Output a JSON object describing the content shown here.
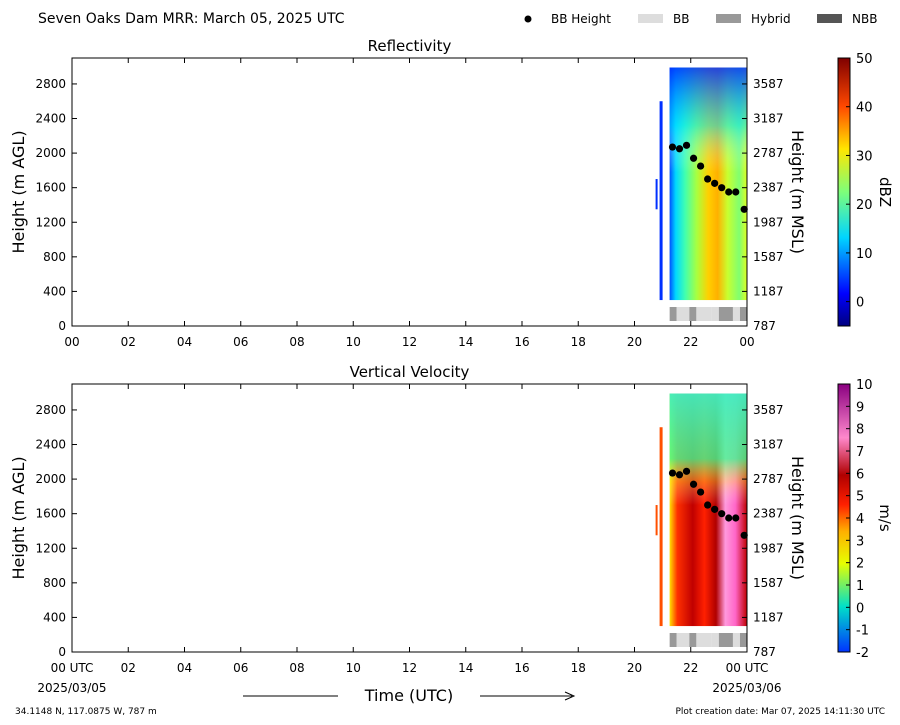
{
  "header": {
    "title": "Seven Oaks Dam MRR:  March 05, 2025 UTC"
  },
  "legend": [
    {
      "kind": "marker",
      "label": "BB Height",
      "color": "#000000"
    },
    {
      "kind": "patch",
      "label": "BB",
      "color": "#dddddd"
    },
    {
      "kind": "patch",
      "label": "Hybrid",
      "color": "#999999"
    },
    {
      "kind": "patch",
      "label": "NBB",
      "color": "#555555"
    }
  ],
  "x_axis": {
    "label": "Time (UTC)",
    "ticks": [
      {
        "hour": 0,
        "label": "00"
      },
      {
        "hour": 2,
        "label": "02"
      },
      {
        "hour": 4,
        "label": "04"
      },
      {
        "hour": 6,
        "label": "06"
      },
      {
        "hour": 8,
        "label": "08"
      },
      {
        "hour": 10,
        "label": "10"
      },
      {
        "hour": 12,
        "label": "12"
      },
      {
        "hour": 14,
        "label": "14"
      },
      {
        "hour": 16,
        "label": "16"
      },
      {
        "hour": 18,
        "label": "18"
      },
      {
        "hour": 20,
        "label": "20"
      },
      {
        "hour": 22,
        "label": "22"
      },
      {
        "hour": 24,
        "label": "00"
      }
    ],
    "bottom_ticks": [
      {
        "hour": 0,
        "label": "00 UTC"
      },
      {
        "hour": 2,
        "label": "02"
      },
      {
        "hour": 4,
        "label": "04"
      },
      {
        "hour": 6,
        "label": "06"
      },
      {
        "hour": 8,
        "label": "08"
      },
      {
        "hour": 10,
        "label": "10"
      },
      {
        "hour": 12,
        "label": "12"
      },
      {
        "hour": 14,
        "label": "14"
      },
      {
        "hour": 16,
        "label": "16"
      },
      {
        "hour": 18,
        "label": "18"
      },
      {
        "hour": 20,
        "label": "20"
      },
      {
        "hour": 22,
        "label": "22"
      },
      {
        "hour": 24,
        "label": "00 UTC"
      }
    ],
    "start_date": "2025/03/05",
    "end_date": "2025/03/06"
  },
  "footer": {
    "location": "34.1148 N, 117.0875 W, 787 m",
    "created": "Plot creation date: Mar 07, 2025 14:11:30 UTC"
  },
  "chart_data": [
    {
      "type": "heatmap",
      "title": "Reflectivity",
      "ylabel": "Height (m AGL)",
      "ylabel_right": "Height (m MSL)",
      "ylim": [
        0,
        3100
      ],
      "xlim": [
        0,
        24
      ],
      "yticks_left": [
        0,
        400,
        800,
        1200,
        1600,
        2000,
        2400,
        2800
      ],
      "yticks_right": [
        787,
        1187,
        1587,
        1987,
        2387,
        2787,
        3187,
        3587
      ],
      "colorbar": {
        "label": "dBZ",
        "min": -5,
        "max": 50,
        "ticks": [
          0,
          10,
          20,
          30,
          40,
          50
        ],
        "stops": [
          [
            "0",
            "#00007f"
          ],
          [
            "0.12",
            "#0000ff"
          ],
          [
            "0.33",
            "#00d5ff"
          ],
          [
            "0.5",
            "#7dff7a"
          ],
          [
            "0.66",
            "#ffe600"
          ],
          [
            "0.82",
            "#ff4800"
          ],
          [
            "1",
            "#7f0000"
          ]
        ]
      },
      "data_coverage_hours": [
        20.75,
        24.0
      ],
      "bb_height": {
        "x": [
          21.35,
          21.6,
          21.85,
          22.1,
          22.35,
          22.6,
          22.85,
          23.1,
          23.35,
          23.6,
          23.9
        ],
        "y": [
          2070,
          2050,
          2090,
          1940,
          1850,
          1700,
          1650,
          1600,
          1550,
          1550,
          1350
        ]
      },
      "bb_type_strip": [
        {
          "start": 21.25,
          "end": 21.5,
          "type": "Hybrid"
        },
        {
          "start": 21.5,
          "end": 21.95,
          "type": "BB"
        },
        {
          "start": 21.95,
          "end": 22.2,
          "type": "Hybrid"
        },
        {
          "start": 22.2,
          "end": 22.75,
          "type": "BB"
        },
        {
          "start": 22.75,
          "end": 23.0,
          "type": "BB"
        },
        {
          "start": 23.0,
          "end": 23.5,
          "type": "Hybrid"
        },
        {
          "start": 23.5,
          "end": 23.75,
          "type": "BB"
        },
        {
          "start": 23.75,
          "end": 24.0,
          "type": "Hybrid"
        }
      ]
    },
    {
      "type": "heatmap",
      "title": "Vertical Velocity",
      "ylabel": "Height (m AGL)",
      "ylabel_right": "Height (m MSL)",
      "ylim": [
        0,
        3100
      ],
      "xlim": [
        0,
        24
      ],
      "yticks_left": [
        0,
        400,
        800,
        1200,
        1600,
        2000,
        2400,
        2800
      ],
      "yticks_right": [
        787,
        1187,
        1587,
        1987,
        2387,
        2787,
        3187,
        3587
      ],
      "colorbar": {
        "label": "m/s",
        "min": -2,
        "max": 10,
        "ticks": [
          -2,
          -1,
          0,
          1,
          2,
          3,
          4,
          5,
          6,
          7,
          8,
          9,
          10
        ],
        "stops": [
          [
            "0",
            "#0033ff"
          ],
          [
            "0.17",
            "#00e0c8"
          ],
          [
            "0.33",
            "#e6ff00"
          ],
          [
            "0.45",
            "#ffb000"
          ],
          [
            "0.55",
            "#ff2000"
          ],
          [
            "0.66",
            "#b00000"
          ],
          [
            "0.8",
            "#ff88cc"
          ],
          [
            "1",
            "#8a0080"
          ]
        ]
      },
      "data_coverage_hours": [
        20.75,
        24.0
      ],
      "bb_height": {
        "x": [
          21.35,
          21.6,
          21.85,
          22.1,
          22.35,
          22.6,
          22.85,
          23.1,
          23.35,
          23.6,
          23.9
        ],
        "y": [
          2070,
          2050,
          2090,
          1940,
          1850,
          1700,
          1650,
          1600,
          1550,
          1550,
          1350
        ]
      },
      "bb_type_strip": [
        {
          "start": 21.25,
          "end": 21.5,
          "type": "Hybrid"
        },
        {
          "start": 21.5,
          "end": 21.95,
          "type": "BB"
        },
        {
          "start": 21.95,
          "end": 22.2,
          "type": "Hybrid"
        },
        {
          "start": 22.2,
          "end": 22.75,
          "type": "BB"
        },
        {
          "start": 22.75,
          "end": 23.0,
          "type": "BB"
        },
        {
          "start": 23.0,
          "end": 23.5,
          "type": "Hybrid"
        },
        {
          "start": 23.5,
          "end": 23.75,
          "type": "BB"
        },
        {
          "start": 23.75,
          "end": 24.0,
          "type": "Hybrid"
        }
      ]
    }
  ]
}
